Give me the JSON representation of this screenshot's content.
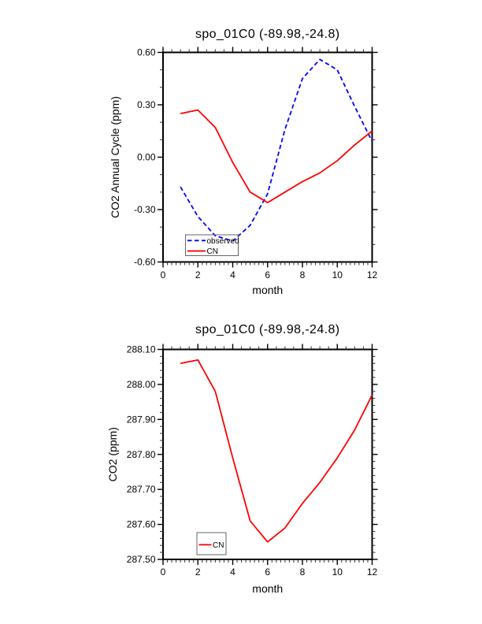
{
  "page": {
    "background": "#ffffff",
    "text_color": "#000000"
  },
  "chart_data": [
    {
      "type": "line",
      "title": "spo_01C0 (-89.98,-24.8)",
      "xlabel": "month",
      "ylabel": "CO2 Annual Cycle (ppm)",
      "x_range": [
        0,
        12
      ],
      "y_range": [
        -0.6,
        0.6
      ],
      "x_major_ticks": [
        0,
        2,
        4,
        6,
        8,
        10,
        12
      ],
      "x_tick_labels": [
        "0",
        "2",
        "4",
        "6",
        "8",
        "10",
        "12"
      ],
      "x_minor_step": 0.25,
      "x_minor_step_top": 0.5,
      "y_major_ticks": [
        0.6,
        0.3,
        0.0,
        -0.3,
        -0.6
      ],
      "y_tick_labels": [
        "0.60",
        "0.30",
        "0.00",
        "-0.30",
        "-0.60"
      ],
      "y_minor_step": 0.1,
      "grid": false,
      "x": [
        1,
        2,
        3,
        4,
        5,
        6,
        7,
        8,
        9,
        10,
        11,
        12
      ],
      "series": [
        {
          "name": "observed",
          "color": "#0000ff",
          "style": "dashed",
          "values": [
            -0.17,
            -0.34,
            -0.45,
            -0.48,
            -0.39,
            -0.21,
            0.16,
            0.45,
            0.56,
            0.5,
            0.29,
            0.09
          ]
        },
        {
          "name": "CN",
          "color": "#ff0000",
          "style": "solid",
          "values": [
            0.25,
            0.27,
            0.17,
            -0.03,
            -0.2,
            -0.26,
            -0.2,
            -0.14,
            -0.09,
            -0.02,
            0.07,
            0.15
          ]
        }
      ],
      "legend": {
        "position": "lower-left",
        "entries": [
          {
            "label": "observed",
            "color": "#0000ff",
            "style": "dashed"
          },
          {
            "label": "CN",
            "color": "#ff0000",
            "style": "solid"
          }
        ]
      }
    },
    {
      "type": "line",
      "title": "spo_01C0 (-89.98,-24.8)",
      "xlabel": "month",
      "ylabel": "CO2 (ppm)",
      "x_range": [
        0,
        12
      ],
      "y_range": [
        287.5,
        288.1
      ],
      "x_major_ticks": [
        0,
        2,
        4,
        6,
        8,
        10,
        12
      ],
      "x_tick_labels": [
        "0",
        "2",
        "4",
        "6",
        "8",
        "10",
        "12"
      ],
      "x_minor_step": 0.25,
      "x_minor_step_top": 0.5,
      "y_major_ticks": [
        288.1,
        288.0,
        287.9,
        287.8,
        287.7,
        287.6,
        287.5
      ],
      "y_tick_labels": [
        "288.10",
        "288.00",
        "287.90",
        "287.80",
        "287.70",
        "287.60",
        "287.50"
      ],
      "y_minor_step": 0.02,
      "grid": false,
      "x": [
        1,
        2,
        3,
        4,
        5,
        6,
        7,
        8,
        9,
        10,
        11,
        12
      ],
      "series": [
        {
          "name": "CN",
          "color": "#ff0000",
          "style": "solid",
          "values": [
            288.06,
            288.07,
            287.98,
            287.79,
            287.61,
            287.55,
            287.59,
            287.66,
            287.72,
            287.79,
            287.87,
            287.97
          ]
        }
      ],
      "legend": {
        "position": "lower-left",
        "entries": [
          {
            "label": "CN",
            "color": "#ff0000",
            "style": "solid"
          }
        ]
      }
    }
  ]
}
